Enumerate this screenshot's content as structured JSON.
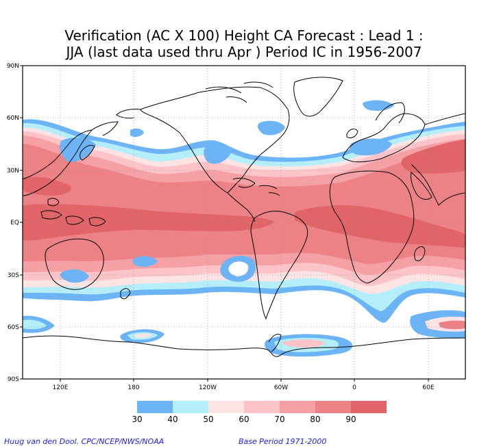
{
  "title": {
    "line1": "Verification (AC X 100) Height CA Forecast : Lead 1 :",
    "line2": "JJA (last data used thru Apr ) Period IC in 1956-2007"
  },
  "lat_labels": [
    "90N",
    "60N",
    "30N",
    "EQ",
    "30S",
    "60S",
    "90S"
  ],
  "lon_labels": [
    "120E",
    "180",
    "120W",
    "60W",
    "0",
    "60E"
  ],
  "colorbar": {
    "colors": [
      "#6cb4f5",
      "#b4eef8",
      "#ffe4e6",
      "#fcc4c8",
      "#f5a0a4",
      "#ec8286",
      "#e06468"
    ],
    "labels": [
      "30",
      "40",
      "50",
      "60",
      "70",
      "80",
      "90"
    ]
  },
  "colors": {
    "land_outline": "#000000",
    "grid": "#999999"
  },
  "footer": {
    "left": "Huug van den Dool. CPC/NCEP/NWS/NOAA",
    "right": "Base Period 1971-2000"
  }
}
